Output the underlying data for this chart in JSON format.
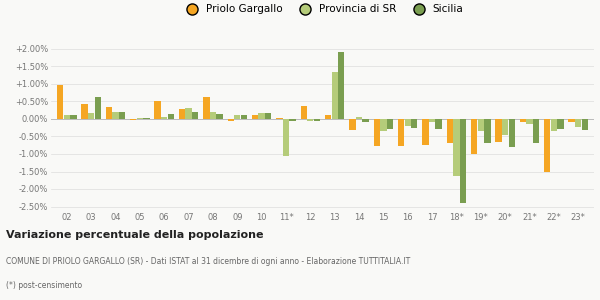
{
  "years": [
    "02",
    "03",
    "04",
    "05",
    "06",
    "07",
    "08",
    "09",
    "10",
    "11*",
    "12",
    "13",
    "14",
    "15",
    "16",
    "17",
    "18*",
    "19*",
    "20*",
    "21*",
    "22*",
    "23*"
  ],
  "priolo": [
    0.97,
    0.43,
    0.33,
    -0.03,
    0.5,
    0.28,
    0.62,
    -0.05,
    0.12,
    0.02,
    0.38,
    0.1,
    -0.32,
    -0.78,
    -0.77,
    -0.75,
    -0.7,
    -1.0,
    -0.65,
    -0.08,
    -1.52,
    -0.1
  ],
  "provincia": [
    0.1,
    0.17,
    0.2,
    0.04,
    0.06,
    0.3,
    0.2,
    0.1,
    0.18,
    -1.05,
    -0.05,
    1.35,
    0.05,
    -0.35,
    -0.2,
    -0.1,
    -1.62,
    -0.35,
    -0.45,
    -0.15,
    -0.35,
    -0.22
  ],
  "sicilia": [
    0.1,
    0.62,
    0.2,
    0.04,
    0.14,
    0.2,
    0.13,
    0.1,
    0.18,
    -0.05,
    -0.05,
    1.92,
    -0.08,
    -0.3,
    -0.25,
    -0.3,
    -2.4,
    -0.68,
    -0.8,
    -0.7,
    -0.3,
    -0.32
  ],
  "color_priolo": "#f5a623",
  "color_provincia": "#b5cc7a",
  "color_sicilia": "#7a9e50",
  "background": "#f9f9f7",
  "grid_color": "#dddddd",
  "ylim": [
    -2.6,
    2.2
  ],
  "yticks": [
    -2.5,
    -2.0,
    -1.5,
    -1.0,
    -0.5,
    0.0,
    0.5,
    1.0,
    1.5,
    2.0
  ],
  "ytick_labels": [
    "-2.50%",
    "-2.00%",
    "-1.50%",
    "-1.00%",
    "-0.50%",
    "0.00%",
    "+0.50%",
    "+1.00%",
    "+1.50%",
    "+2.00%"
  ],
  "title": "Variazione percentuale della popolazione",
  "subtitle": "COMUNE DI PRIOLO GARGALLO (SR) - Dati ISTAT al 31 dicembre di ogni anno - Elaborazione TUTTITALIA.IT",
  "footnote": "(*) post-censimento",
  "legend_priolo": "Priolo Gargallo",
  "legend_provincia": "Provincia di SR",
  "legend_sicilia": "Sicilia"
}
